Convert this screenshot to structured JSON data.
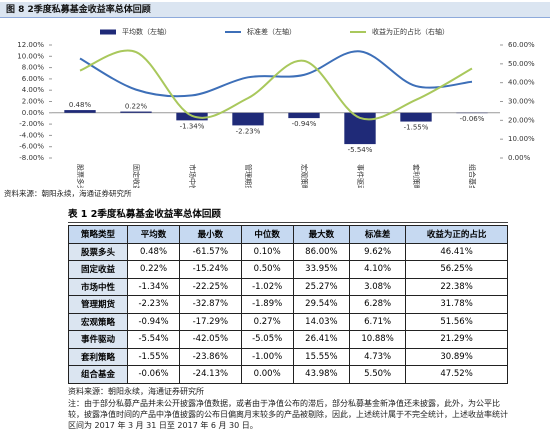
{
  "figure_caption": "图 8  2季度私募基金收益率总体回顾",
  "chart_data": {
    "type": "bar-line",
    "categories": [
      "股票多头",
      "固定收益",
      "市场中性",
      "管理期货",
      "宏观策略",
      "事件驱动",
      "套利策略",
      "组合基金"
    ],
    "series": [
      {
        "name": "平均数（左轴）",
        "type": "bar",
        "color": "#1f2a78",
        "values": [
          0.48,
          0.22,
          -1.34,
          -2.23,
          -0.94,
          -5.54,
          -1.55,
          -0.06
        ],
        "value_labels": [
          "0.48%",
          "0.22%",
          "-1.34%",
          "-2.23%",
          "-0.94%",
          "-5.54%",
          "-1.55%",
          "-0.06%"
        ]
      },
      {
        "name": "标准差（左轴）",
        "type": "line",
        "color": "#3d6fb8",
        "values": [
          9.62,
          4.1,
          3.08,
          6.28,
          6.71,
          10.88,
          4.73,
          5.5
        ]
      },
      {
        "name": "收益为正的占比（右轴）",
        "type": "line",
        "axis": "y2",
        "color": "#a9c85c",
        "values": [
          46.41,
          56.25,
          22.38,
          31.78,
          51.56,
          21.29,
          30.89,
          47.52
        ]
      }
    ],
    "ylim": [
      -8,
      12
    ],
    "yticks": [
      {
        "value": -8,
        "label": "-8.00%"
      },
      {
        "value": -6,
        "label": "-6.00%"
      },
      {
        "value": -4,
        "label": "-4.00%"
      },
      {
        "value": -2,
        "label": "-2.00%"
      },
      {
        "value": 0,
        "label": "0.00%"
      },
      {
        "value": 2,
        "label": "2.00%"
      },
      {
        "value": 4,
        "label": "4.00%"
      },
      {
        "value": 6,
        "label": "6.00%"
      },
      {
        "value": 8,
        "label": "8.00%"
      },
      {
        "value": 10,
        "label": "10.00%"
      },
      {
        "value": 12,
        "label": "12.00%"
      }
    ],
    "y2lim": [
      0,
      60
    ],
    "y2ticks": [
      {
        "value": 0,
        "label": "0.00%"
      },
      {
        "value": 10,
        "label": "10.00%"
      },
      {
        "value": 20,
        "label": "20.00%"
      },
      {
        "value": 30,
        "label": "30.00%"
      },
      {
        "value": 40,
        "label": "40.00%"
      },
      {
        "value": 50,
        "label": "50.00%"
      },
      {
        "value": 60,
        "label": "60.00%"
      }
    ],
    "legend": "top"
  },
  "figure_source": "资料来源：朝阳永续，海通证券研究所",
  "table": {
    "caption": "表 1  2季度私募基金收益率总体回顾",
    "header": [
      "策略类型",
      "平均数",
      "最小数",
      "中位数",
      "最大数",
      "标准差",
      "收益为正的占比"
    ],
    "rows": [
      [
        "股票多头",
        "0.48%",
        "-61.57%",
        "0.10%",
        "86.00%",
        "9.62%",
        "46.41%"
      ],
      [
        "固定收益",
        "0.22%",
        "-15.24%",
        "0.50%",
        "33.95%",
        "4.10%",
        "56.25%"
      ],
      [
        "市场中性",
        "-1.34%",
        "-22.25%",
        "-1.02%",
        "25.27%",
        "3.08%",
        "22.38%"
      ],
      [
        "管理期货",
        "-2.23%",
        "-32.87%",
        "-1.89%",
        "29.54%",
        "6.28%",
        "31.78%"
      ],
      [
        "宏观策略",
        "-0.94%",
        "-17.29%",
        "0.27%",
        "14.03%",
        "6.71%",
        "51.56%"
      ],
      [
        "事件驱动",
        "-5.54%",
        "-42.05%",
        "-5.05%",
        "26.41%",
        "10.88%",
        "21.29%"
      ],
      [
        "套利策略",
        "-1.55%",
        "-23.86%",
        "-1.00%",
        "15.55%",
        "4.73%",
        "30.89%"
      ],
      [
        "组合基金",
        "-0.06%",
        "-24.13%",
        "0.00%",
        "43.98%",
        "5.50%",
        "47.52%"
      ]
    ]
  },
  "table_source": "资料来源：朝阳永续，海通证券研究所",
  "note": "注：由于部分私募产品并未公开披露净值数据，或者由于净值公布的滞后，部分私募基金新净值还未披露，此外，为公平比较，披露净值时间的产品中净值披露的公布日偏离月末较多的产品被剔除，因此，上述统计属于不完全统计，上述收益率统计区间为 2017 年 3 月 31 日至 2017 年 6 月 30 日。"
}
